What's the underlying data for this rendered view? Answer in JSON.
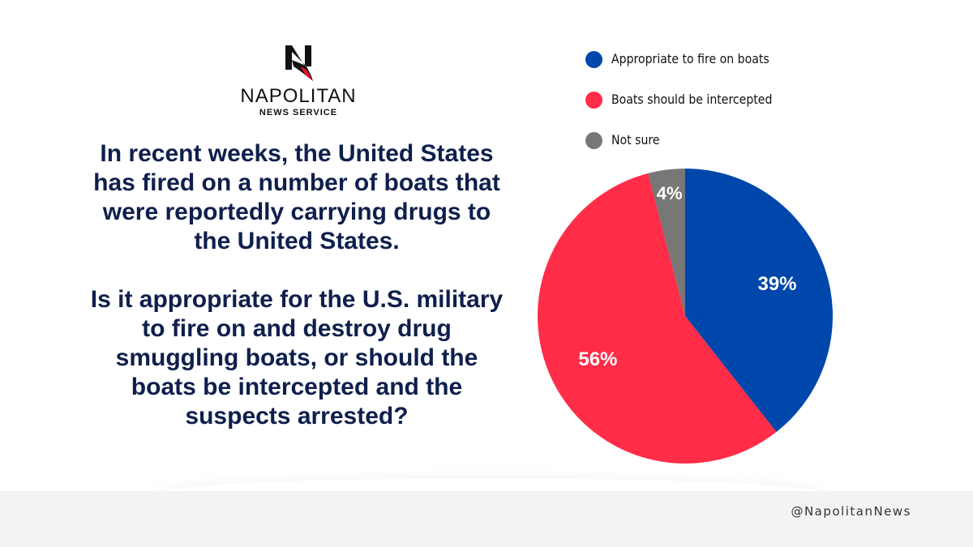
{
  "logo": {
    "brand": "NAPOLITAN",
    "sub": "NEWS SERVICE"
  },
  "question": {
    "intro": "In recent weeks, the United States has fired on a number of boats that were reportedly carrying drugs to the United States.",
    "ask": "Is it appropriate for the U.S. military to fire on and destroy drug smuggling boats, or should the boats be intercepted and the suspects arrested?"
  },
  "footer": {
    "handle": "@NapolitanNews"
  },
  "colors": {
    "navy_text": "#0f1f4d",
    "blue": "#0047ab",
    "red": "#ff2d47",
    "gray": "#777777"
  },
  "chart_data": {
    "type": "pie",
    "title": "",
    "legend_position": "top",
    "slices": [
      {
        "label": "Appropriate to fire on boats",
        "value": 39,
        "display": "39%",
        "color": "#0047ab"
      },
      {
        "label": "Boats should be intercepted",
        "value": 56,
        "display": "56%",
        "color": "#ff2d47"
      },
      {
        "label": "Not sure",
        "value": 4,
        "display": "4%",
        "color": "#777777"
      }
    ]
  }
}
